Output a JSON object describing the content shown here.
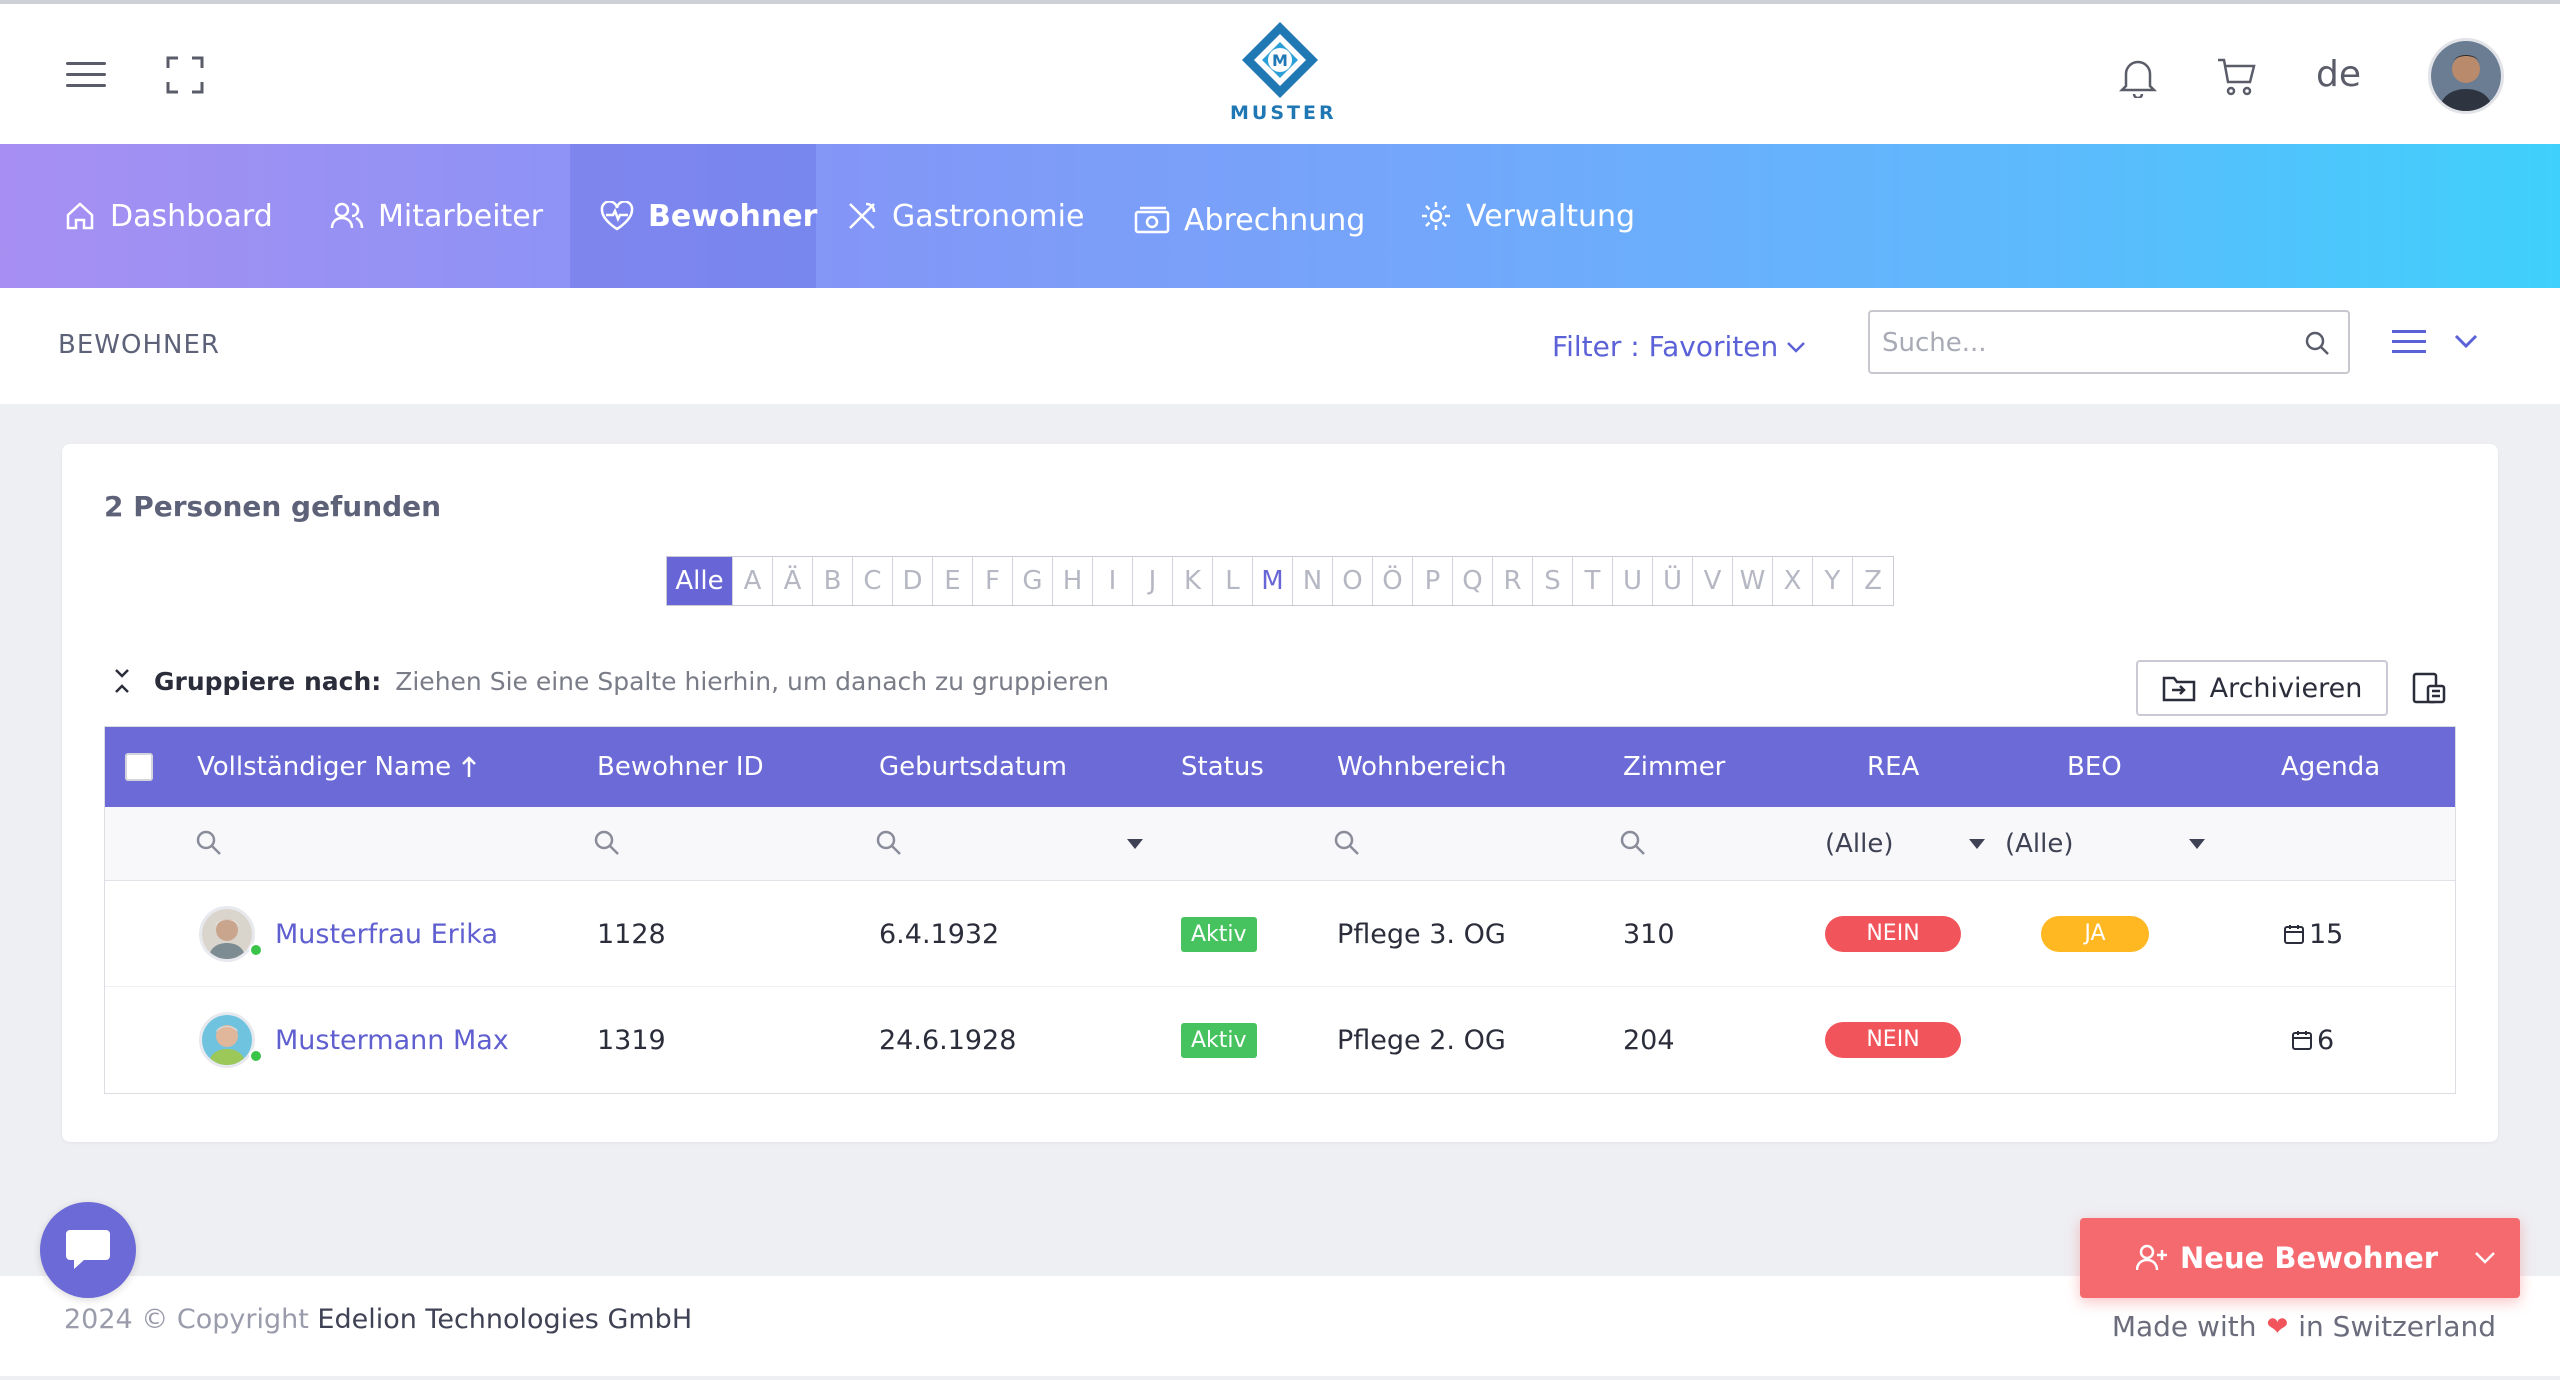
{
  "brand": {
    "logo_text": "MUSTER"
  },
  "topbar": {
    "language": "de"
  },
  "nav": {
    "items": [
      {
        "label": "Dashboard",
        "icon": "home-icon"
      },
      {
        "label": "Mitarbeiter",
        "icon": "users-icon"
      },
      {
        "label": "Bewohner",
        "icon": "heart-pulse-icon",
        "active": true
      },
      {
        "label": "Gastronomie",
        "icon": "cutlery-icon"
      },
      {
        "label": "Abrechnung",
        "icon": "money-icon"
      },
      {
        "label": "Verwaltung",
        "icon": "gear-icon"
      }
    ]
  },
  "subheader": {
    "title": "BEWOHNER",
    "filter_label": "Filter : Favoriten",
    "search_placeholder": "Suche..."
  },
  "main": {
    "found_text": "2 Personen gefunden",
    "alphabet": [
      "Alle",
      "A",
      "Ä",
      "B",
      "C",
      "D",
      "E",
      "F",
      "G",
      "H",
      "I",
      "J",
      "K",
      "L",
      "M",
      "N",
      "O",
      "Ö",
      "P",
      "Q",
      "R",
      "S",
      "T",
      "U",
      "Ü",
      "V",
      "W",
      "X",
      "Y",
      "Z"
    ],
    "alphabet_selected": "Alle",
    "alphabet_highlight": "M",
    "group_label": "Gruppiere nach:",
    "group_hint": "Ziehen Sie eine Spalte hierhin, um danach zu gruppieren",
    "archive_label": "Archivieren"
  },
  "table": {
    "headers": {
      "name": "Vollständiger Name",
      "id": "Bewohner ID",
      "birth": "Geburtsdatum",
      "status": "Status",
      "area": "Wohnbereich",
      "room": "Zimmer",
      "rea": "REA",
      "beo": "BEO",
      "agenda": "Agenda"
    },
    "filters": {
      "rea": "(Alle)",
      "beo": "(Alle)"
    },
    "rows": [
      {
        "name": "Musterfrau Erika",
        "id": "1128",
        "birth": "6.4.1932",
        "status": "Aktiv",
        "area": "Pflege 3. OG",
        "room": "310",
        "rea": "NEIN",
        "beo": "JA",
        "agenda": "15"
      },
      {
        "name": "Mustermann Max",
        "id": "1319",
        "birth": "24.6.1928",
        "status": "Aktiv",
        "area": "Pflege 2. OG",
        "room": "204",
        "rea": "NEIN",
        "beo": "",
        "agenda": "6"
      }
    ]
  },
  "footer": {
    "copyright_prefix": "2024 © Copyright",
    "company": "Edelion Technologies GmbH",
    "made_prefix": "Made with",
    "made_suffix": "in Switzerland"
  },
  "actions": {
    "new_resident": "Neue Bewohner"
  },
  "colors": {
    "accent": "#6c6ad6",
    "danger": "#f2545b",
    "warning": "#ffb822",
    "success": "#46c35f"
  }
}
